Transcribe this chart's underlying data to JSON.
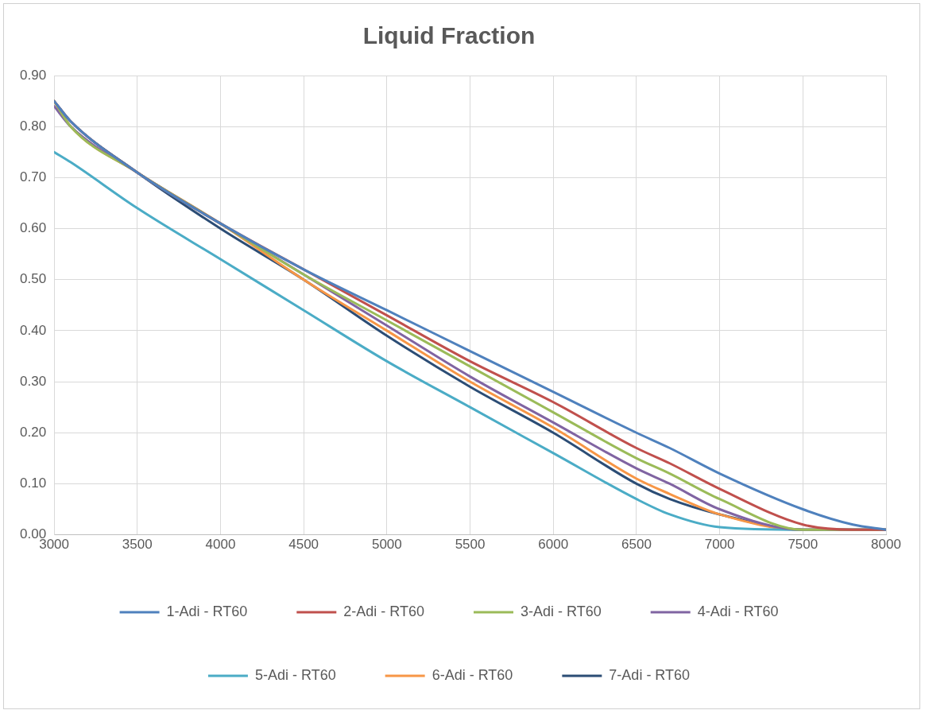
{
  "chart_data": {
    "type": "line",
    "title": "Liquid Fraction",
    "x": [
      3000,
      3100,
      3500,
      4000,
      4500,
      5000,
      5500,
      6000,
      6500,
      6700,
      7000,
      7500,
      7800,
      8000
    ],
    "series": [
      {
        "name": "1-Adi - RT60",
        "color": "#4f81bd",
        "values": [
          0.85,
          0.81,
          0.71,
          0.61,
          0.52,
          0.44,
          0.36,
          0.28,
          0.2,
          0.17,
          0.12,
          0.05,
          0.02,
          0.01
        ]
      },
      {
        "name": "2-Adi - RT60",
        "color": "#c0504d",
        "values": [
          0.85,
          0.81,
          0.71,
          0.61,
          0.52,
          0.43,
          0.34,
          0.26,
          0.17,
          0.14,
          0.09,
          0.02,
          0.01,
          0.01
        ]
      },
      {
        "name": "3-Adi - RT60",
        "color": "#9bbb59",
        "values": [
          0.85,
          0.8,
          0.71,
          0.61,
          0.51,
          0.42,
          0.33,
          0.24,
          0.15,
          0.12,
          0.07,
          0.01,
          0.01,
          0.01
        ]
      },
      {
        "name": "4-Adi - RT60",
        "color": "#8064a2",
        "values": [
          0.84,
          0.8,
          0.71,
          0.61,
          0.51,
          0.41,
          0.31,
          0.22,
          0.13,
          0.1,
          0.05,
          0.01,
          0.01,
          0.01
        ]
      },
      {
        "name": "5-Adi - RT60",
        "color": "#4bacc6",
        "values": [
          0.75,
          0.73,
          0.64,
          0.54,
          0.44,
          0.34,
          0.25,
          0.16,
          0.07,
          0.04,
          0.015,
          0.01,
          0.01,
          0.01
        ]
      },
      {
        "name": "6-Adi - RT60",
        "color": "#f79646",
        "values": [
          0.85,
          0.8,
          0.71,
          0.61,
          0.5,
          0.4,
          0.3,
          0.21,
          0.11,
          0.08,
          0.04,
          0.01,
          0.01,
          0.01
        ]
      },
      {
        "name": "7-Adi - RT60",
        "color": "#2c4d75",
        "values": [
          0.85,
          0.81,
          0.71,
          0.6,
          0.5,
          0.39,
          0.29,
          0.2,
          0.1,
          0.07,
          0.04,
          0.01,
          0.01,
          0.01
        ]
      }
    ],
    "xlim": [
      3000,
      8000
    ],
    "xticks": [
      3000,
      3500,
      4000,
      4500,
      5000,
      5500,
      6000,
      6500,
      7000,
      7500,
      8000
    ],
    "ylim": [
      0,
      0.9
    ],
    "yticks": [
      {
        "value": 0,
        "label": "0.00"
      },
      {
        "value": 0.1,
        "label": "0.10"
      },
      {
        "value": 0.2,
        "label": "0.20"
      },
      {
        "value": 0.3,
        "label": "0.30"
      },
      {
        "value": 0.4,
        "label": "0.40"
      },
      {
        "value": 0.5,
        "label": "0.50"
      },
      {
        "value": 0.6,
        "label": "0.60"
      },
      {
        "value": 0.7,
        "label": "0.70"
      },
      {
        "value": 0.8,
        "label": "0.80"
      },
      {
        "value": 0.9,
        "label": "0.90"
      }
    ],
    "grid": true,
    "legend": "bottom",
    "marker": "none",
    "line_style": "solid"
  }
}
